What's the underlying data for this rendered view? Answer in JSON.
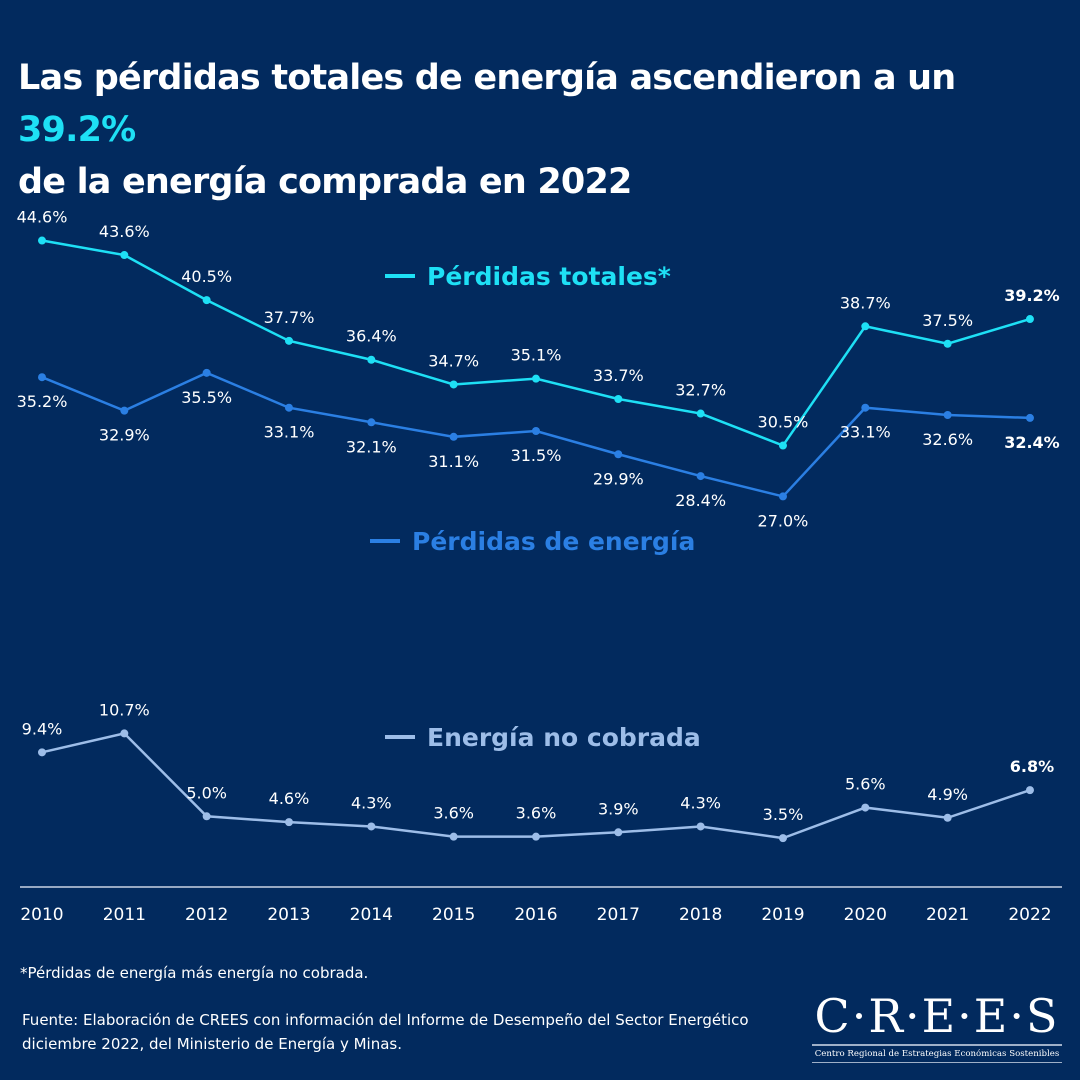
{
  "title": {
    "part1": "Las pérdidas totales de energía ascendieron a un ",
    "highlight": "39.2%",
    "part2": "de la energía comprada en 2022"
  },
  "colors": {
    "background": "#022a5e",
    "highlight": "#1ee0f5",
    "perdidas_totales": "#1ee0f5",
    "perdidas_energia": "#2b7fe3",
    "energia_no_cobrada": "#9dbde8"
  },
  "chart_data": {
    "type": "line",
    "categories": [
      "2010",
      "2011",
      "2012",
      "2013",
      "2014",
      "2015",
      "2016",
      "2017",
      "2018",
      "2019",
      "2020",
      "2021",
      "2022"
    ],
    "ylim": [
      0,
      44.6
    ],
    "grid": false,
    "legend": "inline",
    "series": [
      {
        "name": "Pérdidas totales*",
        "values": [
          44.6,
          43.6,
          40.5,
          37.7,
          36.4,
          34.7,
          35.1,
          33.7,
          32.7,
          30.5,
          38.7,
          37.5,
          39.2
        ],
        "labels": [
          "44.6%",
          "43.6%",
          "40.5%",
          "37.7%",
          "36.4%",
          "34.7%",
          "35.1%",
          "33.7%",
          "32.7%",
          "30.5%",
          "38.7%",
          "37.5%",
          "39.2%"
        ]
      },
      {
        "name": "Pérdidas de energía",
        "values": [
          35.2,
          32.9,
          35.5,
          33.1,
          32.1,
          31.1,
          31.5,
          29.9,
          28.4,
          27.0,
          33.1,
          32.6,
          32.4
        ],
        "labels": [
          "35.2%",
          "32.9%",
          "35.5%",
          "33.1%",
          "32.1%",
          "31.1%",
          "31.5%",
          "29.9%",
          "28.4%",
          "27.0%",
          "33.1%",
          "32.6%",
          "32.4%"
        ]
      },
      {
        "name": "Energía no cobrada",
        "values": [
          9.4,
          10.7,
          5.0,
          4.6,
          4.3,
          3.6,
          3.6,
          3.9,
          4.3,
          3.5,
          5.6,
          4.9,
          6.8
        ],
        "labels": [
          "9.4%",
          "10.7%",
          "5.0%",
          "4.6%",
          "4.3%",
          "3.6%",
          "3.6%",
          "3.9%",
          "4.3%",
          "3.5%",
          "5.6%",
          "4.9%",
          "6.8%"
        ]
      }
    ]
  },
  "note": "*Pérdidas de energía más energía no cobrada.",
  "source": "Fuente: Elaboración de CREES con información del Informe de Desempeño del Sector Energético diciembre 2022, del Ministerio de Energía y Minas.",
  "logo": {
    "name": "C·R·E·E·S",
    "subtitle": "Centro Regional de Estrategias Económicas Sostenibles"
  }
}
